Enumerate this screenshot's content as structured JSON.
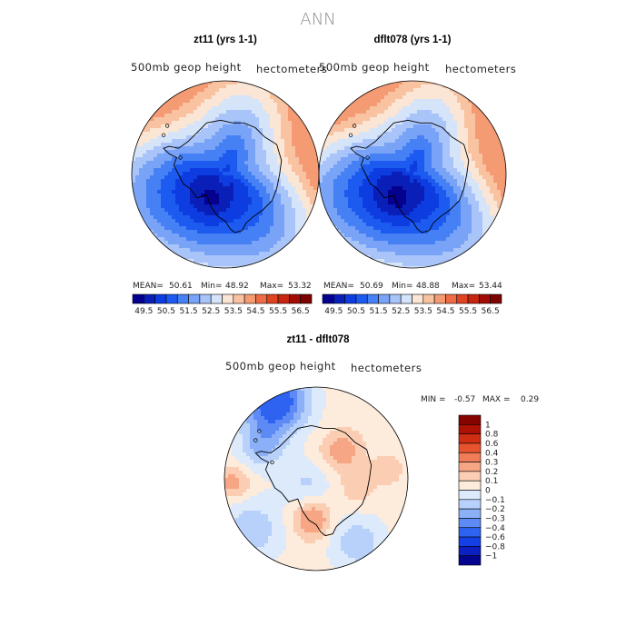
{
  "figure": {
    "title": "ANN"
  },
  "chart_data": [
    {
      "type": "heatmap",
      "projection": "south-polar-stereographic",
      "title": "zt11 (yrs 1-1)",
      "variable": "500mb geop height",
      "units": "hectometers",
      "stats": {
        "mean_label": "MEAN=",
        "mean": "50.61",
        "min_label": "Min=",
        "min": "48.92",
        "max_label": "Max=",
        "max": "53.32"
      },
      "field": {
        "center_value": 49.1,
        "edge_value": 53.2,
        "low_center_offset": [
          -0.15,
          0.25
        ]
      },
      "colorbar": {
        "orientation": "horizontal",
        "levels": [
          49.5,
          50,
          50.5,
          51,
          51.5,
          52,
          52.5,
          53,
          53.5,
          54,
          54.5,
          55,
          55.5,
          56,
          56.5
        ],
        "tick_labels": [
          "49.5",
          "50.5",
          "51.5",
          "52.5",
          "53.5",
          "54.5",
          "55.5",
          "56.5"
        ],
        "colors": [
          "#06008e",
          "#0a1fb8",
          "#0d3de0",
          "#1d5bf0",
          "#4680f5",
          "#78a3f7",
          "#a9c4f9",
          "#d6e4fa",
          "#fbe5d4",
          "#f9c3a2",
          "#f59b73",
          "#ef6b45",
          "#e0431f",
          "#c72510",
          "#a10d05",
          "#7a0300"
        ]
      }
    },
    {
      "type": "heatmap",
      "projection": "south-polar-stereographic",
      "title": "dflt078 (yrs 1-1)",
      "variable": "500mb geop height",
      "units": "hectometers",
      "stats": {
        "mean_label": "MEAN=",
        "mean": "50.69",
        "min_label": "Min=",
        "min": "48.88",
        "max_label": "Max=",
        "max": "53.44"
      },
      "field": {
        "center_value": 49.0,
        "edge_value": 53.3,
        "low_center_offset": [
          -0.15,
          0.25
        ]
      },
      "colorbar": {
        "orientation": "horizontal",
        "levels": [
          49.5,
          50,
          50.5,
          51,
          51.5,
          52,
          52.5,
          53,
          53.5,
          54,
          54.5,
          55,
          55.5,
          56,
          56.5
        ],
        "tick_labels": [
          "49.5",
          "50.5",
          "51.5",
          "52.5",
          "53.5",
          "54.5",
          "55.5",
          "56.5"
        ],
        "colors": [
          "#06008e",
          "#0a1fb8",
          "#0d3de0",
          "#1d5bf0",
          "#4680f5",
          "#78a3f7",
          "#a9c4f9",
          "#d6e4fa",
          "#fbe5d4",
          "#f9c3a2",
          "#f59b73",
          "#ef6b45",
          "#e0431f",
          "#c72510",
          "#a10d05",
          "#7a0300"
        ]
      }
    },
    {
      "type": "heatmap",
      "projection": "south-polar-stereographic",
      "title": "zt11 - dflt078",
      "variable": "500mb geop height",
      "units": "hectometers",
      "stats": {
        "min_label": "MIN =",
        "min": "-0.57",
        "max_label": "MAX =",
        "max": "0.29"
      },
      "field": {
        "range": [
          -0.57,
          0.29
        ]
      },
      "colorbar": {
        "orientation": "vertical",
        "levels": [
          -1,
          -0.8,
          -0.6,
          -0.4,
          -0.3,
          -0.2,
          -0.1,
          0,
          0.1,
          0.2,
          0.3,
          0.4,
          0.6,
          0.8,
          1
        ],
        "tick_labels": [
          "1",
          "0.8",
          "0.6",
          "0.4",
          "0.3",
          "0.2",
          "0.1",
          "0",
          "−0.1",
          "−0.2",
          "−0.3",
          "−0.4",
          "−0.6",
          "−0.8",
          "−1"
        ],
        "colors": [
          "#03058f",
          "#0c1fc0",
          "#1440e6",
          "#2e63f2",
          "#5d8af4",
          "#8cb0f7",
          "#b8d1fa",
          "#dceafb",
          "#fdebdc",
          "#fbcdb3",
          "#f6a684",
          "#f07c58",
          "#e6532e",
          "#cf2e12",
          "#ad1205",
          "#870300"
        ]
      }
    }
  ]
}
